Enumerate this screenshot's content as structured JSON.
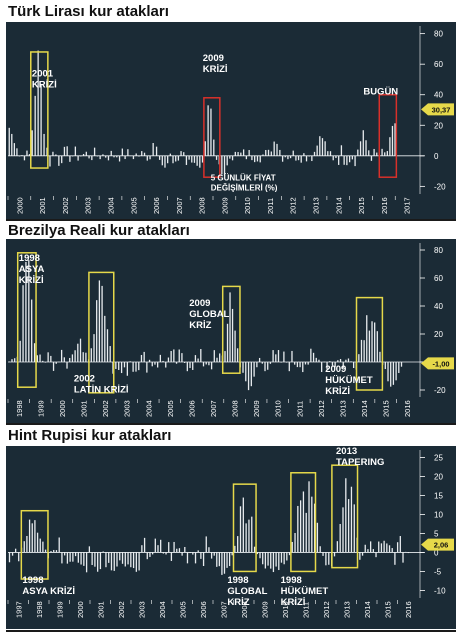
{
  "colors": {
    "panel_bg": "#1b2b36",
    "bar": "#e8ecef",
    "highlight_box": "#e6d94a",
    "highlight_box_red": "#d8302a",
    "value_badge": "#e6d94a",
    "text": "#ffffff"
  },
  "chart_data": [
    {
      "type": "bar",
      "title": "Türk Lirası kur atakları",
      "x_ticks": [
        "2000",
        "2001",
        "2002",
        "2003",
        "2004",
        "2005",
        "2006",
        "2007",
        "2008",
        "2009",
        "2010",
        "2011",
        "2012",
        "2013",
        "2014",
        "2015",
        "2016",
        "2017"
      ],
      "y_ticks": [
        "80",
        "60",
        "40",
        "20",
        "0",
        "-20"
      ],
      "ylim": [
        -25,
        85
      ],
      "current_value_label": "30,37",
      "annotations": [
        {
          "text": [
            "2001",
            "KRİZİ"
          ],
          "box": "yellow"
        },
        {
          "text": [
            "2009",
            "KRİZİ"
          ],
          "box": "red"
        },
        {
          "text": [
            "BUGÜN"
          ],
          "box": "red"
        },
        {
          "text": [
            "5 GÜNLÜK FİYAT",
            "DEĞİŞİMLERİ (%)"
          ],
          "box": "none"
        }
      ],
      "series_segments": [
        {
          "from": 2000.0,
          "to": 2000.45,
          "shape": "decay",
          "peak": 22,
          "base": 3
        },
        {
          "from": 2000.45,
          "to": 2001.0,
          "shape": "noise",
          "amp": 4
        },
        {
          "from": 2001.0,
          "to": 2001.65,
          "shape": "spike",
          "peak": 80
        },
        {
          "from": 2001.65,
          "to": 2002.3,
          "shape": "noise",
          "amp": 12
        },
        {
          "from": 2002.3,
          "to": 2003.5,
          "shape": "noise",
          "amp": 6
        },
        {
          "from": 2003.5,
          "to": 2006.3,
          "shape": "noise",
          "amp": 5
        },
        {
          "from": 2006.3,
          "to": 2006.6,
          "shape": "spike",
          "peak": 17
        },
        {
          "from": 2006.6,
          "to": 2008.6,
          "shape": "negdrift",
          "amp": 8
        },
        {
          "from": 2008.6,
          "to": 2009.1,
          "shape": "spike",
          "peak": 36
        },
        {
          "from": 2009.1,
          "to": 2009.8,
          "shape": "neg",
          "amp": 14
        },
        {
          "from": 2009.8,
          "to": 2011.5,
          "shape": "noise",
          "amp": 5
        },
        {
          "from": 2011.5,
          "to": 2012.0,
          "shape": "spike",
          "peak": 14
        },
        {
          "from": 2012.0,
          "to": 2013.4,
          "shape": "noise",
          "amp": 5
        },
        {
          "from": 2013.4,
          "to": 2014.1,
          "shape": "spike",
          "peak": 14
        },
        {
          "from": 2014.1,
          "to": 2015.3,
          "shape": "noise",
          "amp": 8
        },
        {
          "from": 2015.3,
          "to": 2015.9,
          "shape": "spike",
          "peak": 17
        },
        {
          "from": 2015.9,
          "to": 2016.6,
          "shape": "noise",
          "amp": 5
        },
        {
          "from": 2016.6,
          "to": 2017.05,
          "shape": "rise",
          "peak": 33
        }
      ]
    },
    {
      "type": "bar",
      "title": "Brezilya Reali kur atakları",
      "x_ticks": [
        "1998",
        "1999",
        "2000",
        "2001",
        "2002",
        "2003",
        "2004",
        "2005",
        "2006",
        "2007",
        "2008",
        "2009",
        "2010",
        "2011",
        "2012",
        "2013",
        "2014",
        "2015",
        "2016"
      ],
      "y_ticks": [
        "80",
        "60",
        "40",
        "20",
        "0",
        "-20"
      ],
      "ylim": [
        -25,
        85
      ],
      "current_value_label": "-1,00",
      "annotations": [
        {
          "text": [
            "1998",
            "ASYA",
            "KRİZİ"
          ],
          "box": "yellow"
        },
        {
          "text": [
            "2002",
            "LATİN KRİZİ"
          ],
          "box": "yellow"
        },
        {
          "text": [
            "2009",
            "GLOBAL",
            "KRİZ"
          ],
          "box": "yellow"
        },
        {
          "text": [
            "2009",
            "HÜKÜMET",
            "KRİZİ"
          ],
          "box": "yellow"
        }
      ],
      "series_segments": [
        {
          "from": 1998.0,
          "to": 1998.5,
          "shape": "noise",
          "amp": 4
        },
        {
          "from": 1998.5,
          "to": 1999.3,
          "shape": "spike",
          "peak": 78
        },
        {
          "from": 1999.3,
          "to": 2000.8,
          "shape": "noise",
          "amp": 8
        },
        {
          "from": 2000.8,
          "to": 2001.8,
          "shape": "spike",
          "peak": 18
        },
        {
          "from": 2001.8,
          "to": 2002.8,
          "shape": "spike",
          "peak": 62
        },
        {
          "from": 2002.8,
          "to": 2004.0,
          "shape": "negdrift",
          "amp": 12
        },
        {
          "from": 2004.0,
          "to": 2008.0,
          "shape": "noise",
          "amp": 9
        },
        {
          "from": 2008.0,
          "to": 2008.7,
          "shape": "spike",
          "peak": 50
        },
        {
          "from": 2008.7,
          "to": 2009.6,
          "shape": "neg",
          "amp": 22
        },
        {
          "from": 2009.6,
          "to": 2013.6,
          "shape": "noise",
          "amp": 9
        },
        {
          "from": 2013.6,
          "to": 2014.2,
          "shape": "noise",
          "amp": 6
        },
        {
          "from": 2014.2,
          "to": 2015.3,
          "shape": "spike",
          "peak": 45
        },
        {
          "from": 2015.3,
          "to": 2016.3,
          "shape": "neg",
          "amp": 18
        }
      ]
    },
    {
      "type": "bar",
      "title": "Hint Rupisi kur atakları",
      "x_ticks": [
        "1997",
        "1998",
        "1999",
        "2000",
        "2001",
        "2002",
        "2003",
        "2004",
        "2005",
        "2006",
        "2007",
        "2008",
        "2009",
        "2010",
        "2011",
        "2012",
        "2013",
        "2014",
        "2015",
        "2016"
      ],
      "y_ticks": [
        "25",
        "20",
        "15",
        "10",
        "5",
        "0",
        "-5",
        "-10"
      ],
      "ylim": [
        -12,
        27
      ],
      "current_value_label": "2,06",
      "annotations": [
        {
          "text": [
            "1998",
            "ASYA KRİZİ"
          ],
          "box": "yellow"
        },
        {
          "text": [
            "1998",
            "GLOBAL",
            "KRİZ"
          ],
          "box": "yellow"
        },
        {
          "text": [
            "1998",
            "HÜKÜMET",
            "KRİZİ"
          ],
          "box": "yellow"
        },
        {
          "text": [
            "2013",
            "TAPERING"
          ],
          "box": "yellow"
        }
      ],
      "series_segments": [
        {
          "from": 1997.0,
          "to": 1997.6,
          "shape": "noise",
          "amp": 3
        },
        {
          "from": 1997.6,
          "to": 1998.9,
          "shape": "spike",
          "peak": 10
        },
        {
          "from": 1998.9,
          "to": 2000.5,
          "shape": "noise",
          "amp": 4
        },
        {
          "from": 2000.5,
          "to": 2003.6,
          "shape": "negdrift",
          "amp": 6
        },
        {
          "from": 2003.6,
          "to": 2007.0,
          "shape": "noise",
          "amp": 4
        },
        {
          "from": 2007.0,
          "to": 2008.0,
          "shape": "neg",
          "amp": 7
        },
        {
          "from": 2008.0,
          "to": 2009.1,
          "shape": "spike",
          "peak": 17
        },
        {
          "from": 2009.1,
          "to": 2010.8,
          "shape": "neg",
          "amp": 7
        },
        {
          "from": 2010.8,
          "to": 2012.3,
          "shape": "spike",
          "peak": 20
        },
        {
          "from": 2012.3,
          "to": 2013.0,
          "shape": "neg",
          "amp": 5
        },
        {
          "from": 2013.0,
          "to": 2014.1,
          "shape": "spike",
          "peak": 23
        },
        {
          "from": 2014.1,
          "to": 2016.6,
          "shape": "noise",
          "amp": 4
        }
      ]
    }
  ]
}
